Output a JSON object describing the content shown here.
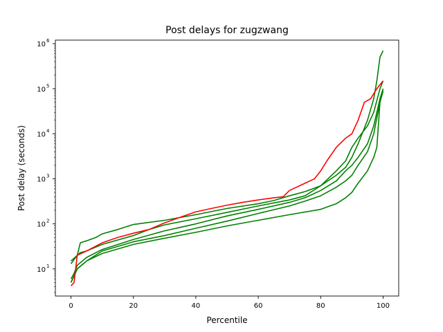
{
  "chart_data": {
    "type": "line",
    "title": "Post delays for zugzwang",
    "xlabel": "Percentile",
    "ylabel": "Post delay (seconds)",
    "xlim": [
      -5,
      105
    ],
    "ylim": [
      2.5,
      1200000
    ],
    "yscale": "log",
    "grid": false,
    "xticks": [
      0,
      20,
      40,
      60,
      80,
      100
    ],
    "yticks": [
      {
        "value": 10,
        "base": "10",
        "exp": "1"
      },
      {
        "value": 100,
        "base": "10",
        "exp": "2"
      },
      {
        "value": 1000,
        "base": "10",
        "exp": "3"
      },
      {
        "value": 10000,
        "base": "10",
        "exp": "4"
      },
      {
        "value": 100000,
        "base": "10",
        "exp": "5"
      },
      {
        "value": 1000000,
        "base": "10",
        "exp": "6"
      }
    ],
    "series": [
      {
        "color": "#008000",
        "points": [
          [
            0,
            13
          ],
          [
            2,
            20
          ],
          [
            3,
            38
          ],
          [
            5,
            42
          ],
          [
            8,
            50
          ],
          [
            10,
            60
          ],
          [
            15,
            75
          ],
          [
            20,
            97
          ],
          [
            30,
            120
          ],
          [
            40,
            160
          ],
          [
            50,
            220
          ],
          [
            60,
            280
          ],
          [
            65,
            330
          ],
          [
            70,
            420
          ],
          [
            75,
            520
          ],
          [
            80,
            700
          ],
          [
            85,
            1200
          ],
          [
            88,
            1800
          ],
          [
            90,
            3000
          ],
          [
            92,
            6000
          ],
          [
            95,
            20000
          ],
          [
            97,
            60000
          ],
          [
            98,
            150000
          ],
          [
            99,
            500000
          ],
          [
            100,
            700000
          ]
        ]
      },
      {
        "color": "#008000",
        "points": [
          [
            0,
            15
          ],
          [
            2,
            20
          ],
          [
            3,
            23
          ],
          [
            5,
            25
          ],
          [
            10,
            35
          ],
          [
            20,
            55
          ],
          [
            25,
            75
          ],
          [
            30,
            95
          ],
          [
            40,
            130
          ],
          [
            50,
            180
          ],
          [
            60,
            250
          ],
          [
            70,
            340
          ],
          [
            75,
            420
          ],
          [
            80,
            700
          ],
          [
            85,
            1500
          ],
          [
            88,
            2500
          ],
          [
            90,
            5000
          ],
          [
            92,
            8000
          ],
          [
            95,
            15000
          ],
          [
            97,
            30000
          ],
          [
            99,
            100000
          ],
          [
            100,
            150000
          ]
        ]
      },
      {
        "color": "#008000",
        "points": [
          [
            0,
            6
          ],
          [
            1,
            8
          ],
          [
            2,
            12
          ],
          [
            5,
            18
          ],
          [
            10,
            27
          ],
          [
            20,
            45
          ],
          [
            30,
            70
          ],
          [
            40,
            100
          ],
          [
            50,
            150
          ],
          [
            60,
            210
          ],
          [
            70,
            300
          ],
          [
            75,
            380
          ],
          [
            80,
            550
          ],
          [
            85,
            900
          ],
          [
            88,
            1500
          ],
          [
            90,
            2000
          ],
          [
            92,
            3000
          ],
          [
            95,
            6000
          ],
          [
            97,
            15000
          ],
          [
            99,
            60000
          ],
          [
            100,
            100000
          ]
        ]
      },
      {
        "color": "#008000",
        "points": [
          [
            0,
            5
          ],
          [
            1,
            7
          ],
          [
            2,
            10
          ],
          [
            5,
            15
          ],
          [
            10,
            25
          ],
          [
            20,
            40
          ],
          [
            30,
            55
          ],
          [
            40,
            80
          ],
          [
            50,
            115
          ],
          [
            60,
            170
          ],
          [
            70,
            250
          ],
          [
            75,
            320
          ],
          [
            80,
            420
          ],
          [
            85,
            650
          ],
          [
            88,
            900
          ],
          [
            90,
            1200
          ],
          [
            92,
            2000
          ],
          [
            95,
            4000
          ],
          [
            97,
            10000
          ],
          [
            99,
            50000
          ],
          [
            100,
            90000
          ]
        ]
      },
      {
        "color": "#008000",
        "points": [
          [
            0,
            5
          ],
          [
            1,
            7
          ],
          [
            2,
            10
          ],
          [
            5,
            15
          ],
          [
            10,
            22
          ],
          [
            20,
            35
          ],
          [
            30,
            48
          ],
          [
            40,
            65
          ],
          [
            50,
            90
          ],
          [
            60,
            120
          ],
          [
            70,
            160
          ],
          [
            80,
            210
          ],
          [
            85,
            280
          ],
          [
            88,
            380
          ],
          [
            90,
            500
          ],
          [
            92,
            800
          ],
          [
            95,
            1500
          ],
          [
            97,
            3000
          ],
          [
            98,
            5000
          ],
          [
            99,
            50000
          ],
          [
            100,
            90000
          ]
        ]
      },
      {
        "color": "#ff0000",
        "points": [
          [
            0,
            4.2
          ],
          [
            1,
            5
          ],
          [
            2,
            20
          ],
          [
            5,
            25
          ],
          [
            10,
            38
          ],
          [
            15,
            50
          ],
          [
            20,
            62
          ],
          [
            25,
            75
          ],
          [
            30,
            105
          ],
          [
            35,
            140
          ],
          [
            40,
            185
          ],
          [
            45,
            220
          ],
          [
            50,
            260
          ],
          [
            55,
            300
          ],
          [
            60,
            340
          ],
          [
            65,
            380
          ],
          [
            68,
            400
          ],
          [
            70,
            550
          ],
          [
            75,
            800
          ],
          [
            78,
            1000
          ],
          [
            80,
            1500
          ],
          [
            82,
            2500
          ],
          [
            85,
            5000
          ],
          [
            88,
            8000
          ],
          [
            90,
            10000
          ],
          [
            92,
            20000
          ],
          [
            94,
            50000
          ],
          [
            96,
            60000
          ],
          [
            98,
            100000
          ],
          [
            100,
            150000
          ]
        ]
      }
    ]
  }
}
